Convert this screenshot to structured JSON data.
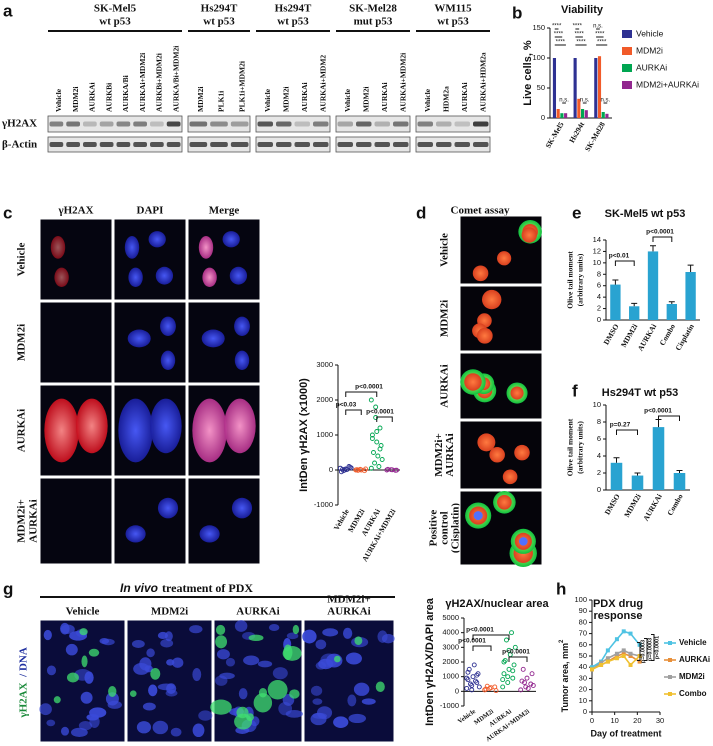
{
  "panel_labels": [
    "a",
    "b",
    "c",
    "d",
    "e",
    "f",
    "g",
    "h"
  ],
  "blot": {
    "groups": [
      {
        "title": [
          "SK-Mel5",
          "wt p53"
        ],
        "lanes": [
          "Vehicle",
          "MDM2i",
          "AURKAi",
          "AURKBi",
          "AURKA/Bi",
          "AURKAi+MDM2i",
          "AURKBi+MDM2i",
          "AURKA/Bi+MDM2i"
        ]
      },
      {
        "title": [
          "Hs294T",
          "wt p53"
        ],
        "lanes": [
          "MDM2i",
          "PLK1i",
          "PLK1i+MDM2i"
        ]
      },
      {
        "title": [
          "Hs294T",
          "wt p53"
        ],
        "lanes": [
          "Vehicle",
          "MDM2i",
          "AURKAi",
          "AURKAi+MDM2"
        ]
      },
      {
        "title": [
          "SK-Mel28",
          "mut p53"
        ],
        "lanes": [
          "Vehicle",
          "MDM2i",
          "AURKAi",
          "AURKAi+MDM2i"
        ]
      },
      {
        "title": [
          "WM115",
          "wt p53"
        ],
        "lanes": [
          "Vehicle",
          "HDM2a",
          "AURKAi",
          "AURKAi+HDM2a"
        ]
      }
    ],
    "rows": [
      "γH2AX",
      "β-Actin"
    ]
  },
  "if_panel": {
    "columns": [
      "γH2AX",
      "DAPI",
      "Merge"
    ],
    "rows": [
      [
        "Vehicle"
      ],
      [
        "MDM2i"
      ],
      [
        "AURKAi"
      ],
      [
        "MDM2i+",
        "AURKAi"
      ]
    ]
  },
  "comet": {
    "title": "Comet assay",
    "rows": [
      [
        "Vehicle"
      ],
      [
        "MDM2i"
      ],
      [
        "AURKAi"
      ],
      [
        "MDM2i+",
        "AURKAi"
      ],
      [
        "Positive",
        "control",
        "(Cisplatin)"
      ]
    ]
  },
  "pdx": {
    "title_em": "In vivo",
    "title_rest": "treatment of PDX",
    "columns": [
      "Vehicle",
      "MDM2i",
      "AURKAi",
      [
        "MDM2i+",
        "AURKAi"
      ]
    ],
    "ylabel": [
      "γH2AX",
      "/ DNA"
    ]
  },
  "chart_data": [
    {
      "type": "bar",
      "title": "Viability",
      "ylabel": [
        "Live cells, %"
      ],
      "categories": [
        "SK-Mel5",
        "Hs294t",
        "SK-Mel28"
      ],
      "series": [
        {
          "name": "Vehicle",
          "color": "#2e3192",
          "values": [
            100,
            100,
            100
          ]
        },
        {
          "name": "MDM2i",
          "color": "#f15a29",
          "values": [
            15,
            32,
            103
          ]
        },
        {
          "name": "AURKAi",
          "color": "#00a651",
          "values": [
            8,
            15,
            10
          ]
        },
        {
          "name": "MDM2i+AURKAi",
          "color": "#92278f",
          "values": [
            8,
            13,
            7
          ]
        }
      ],
      "ylim": [
        0,
        150
      ],
      "yticks": [
        0,
        50,
        100,
        150
      ],
      "annotations": [
        [
          "****",
          "****",
          "****",
          "n.s."
        ],
        [
          "****",
          "****",
          "****",
          "n.s."
        ],
        [
          "n.s.",
          "****",
          "****",
          "n.s."
        ]
      ]
    },
    {
      "type": "strip",
      "ylabel": [
        "IntDen γH2AX (x1000)"
      ],
      "categories": [
        "Vehicle",
        "MDM2i",
        "AURKAi",
        "AURKAi+MDM2i"
      ],
      "colors": [
        "#2e3192",
        "#f15a29",
        "#00a651",
        "#92278f"
      ],
      "points": [
        [
          50,
          0,
          100,
          -50,
          30,
          80,
          20,
          10,
          60,
          -20
        ],
        [
          0,
          20,
          -20,
          10,
          0,
          30,
          -10
        ],
        [
          2000,
          1500,
          1200,
          1000,
          800,
          700,
          500,
          400,
          300,
          200,
          100,
          50,
          1800,
          600,
          900,
          1100
        ],
        [
          0,
          10,
          -10,
          20,
          5,
          -5
        ]
      ],
      "ylim": [
        -1000,
        3000
      ],
      "yticks": [
        -1000,
        0,
        1000,
        2000,
        3000
      ],
      "annotations": [
        "p<0.0001",
        "p<0.03",
        "p<0.0001"
      ]
    },
    {
      "type": "bar",
      "title": "SK-Mel5 wt p53",
      "ylabel": [
        "Olive tail moment",
        "(arbitrary units)"
      ],
      "categories": [
        "DMSO",
        "MDM2i",
        "AURKAi",
        "Combo",
        "Cisplatin"
      ],
      "color": "#29a3d1",
      "values": [
        6.2,
        2.4,
        12,
        2.8,
        8.4
      ],
      "errors": [
        0.8,
        0.5,
        1.0,
        0.4,
        1.2
      ],
      "ylim": [
        0,
        14
      ],
      "yticks": [
        0,
        2,
        4,
        6,
        8,
        10,
        12,
        14
      ],
      "annotations": [
        "p<0.01",
        "p<0.0001"
      ]
    },
    {
      "type": "bar",
      "title": "Hs294T wt p53",
      "ylabel": [
        "Olive tail moment",
        "(arbitrary units)"
      ],
      "categories": [
        "DMSO",
        "MDM2i",
        "AURKAi",
        "Combo"
      ],
      "color": "#29a3d1",
      "values": [
        3.2,
        1.7,
        7.4,
        2.0
      ],
      "errors": [
        0.6,
        0.3,
        0.9,
        0.3
      ],
      "ylim": [
        0,
        10
      ],
      "yticks": [
        0,
        2,
        4,
        6,
        8,
        10
      ],
      "annotations": [
        "p=0.27",
        "p<0.0001"
      ]
    },
    {
      "type": "strip",
      "title": "γH2AX/nuclear area",
      "ylabel": [
        "IntDen γH2AX/DAPI area"
      ],
      "categories": [
        "Vehicle",
        "MDM2i",
        "AURKAi",
        "AURKAi+MDM2i"
      ],
      "colors": [
        "#2e3192",
        "#f15a29",
        "#00a651",
        "#92278f"
      ],
      "points": [
        [
          200,
          400,
          600,
          800,
          1000,
          1200,
          1500,
          1800,
          300,
          500,
          700,
          900,
          100,
          1100,
          1300
        ],
        [
          100,
          200,
          300,
          150,
          250,
          50,
          350
        ],
        [
          300,
          600,
          900,
          1200,
          1500,
          1800,
          2100,
          2500,
          3000,
          3500,
          4000,
          800,
          1000,
          1400,
          2000,
          2800
        ],
        [
          100,
          300,
          500,
          700,
          900,
          1200,
          1500,
          200,
          400,
          600
        ]
      ],
      "ylim": [
        -1000,
        5000
      ],
      "yticks": [
        -1000,
        0,
        1000,
        2000,
        3000,
        4000,
        5000
      ],
      "annotations": [
        "p<0.0001",
        "p<0.0001",
        "p<0.0001"
      ]
    },
    {
      "type": "line",
      "title": [
        "PDX drug",
        "response"
      ],
      "ylabel": [
        "Tumor area, mm",
        "2"
      ],
      "xlabel": "Day of treatment",
      "x": [
        0,
        4,
        7,
        11,
        14,
        17,
        21
      ],
      "series": [
        {
          "name": "Vehicle",
          "color": "#4fc3e3",
          "values": [
            40,
            45,
            55,
            65,
            72,
            70,
            60
          ]
        },
        {
          "name": "AURKAi",
          "color": "#e8903a",
          "values": [
            38,
            42,
            45,
            50,
            52,
            50,
            45
          ]
        },
        {
          "name": "MDM2i",
          "color": "#a0a0a0",
          "values": [
            38,
            44,
            48,
            52,
            55,
            52,
            50
          ]
        },
        {
          "name": "Combo",
          "color": "#f0c030",
          "values": [
            38,
            42,
            45,
            48,
            50,
            42,
            50
          ]
        }
      ],
      "xlim": [
        0,
        30
      ],
      "xticks": [
        0,
        10,
        20,
        30
      ],
      "ylim": [
        0,
        100
      ],
      "yticks": [
        0,
        10,
        20,
        30,
        40,
        50,
        60,
        70,
        80,
        90,
        100
      ],
      "annotations": [
        "p=0.0003",
        "p=0.0003",
        "p<0.0001"
      ]
    }
  ]
}
